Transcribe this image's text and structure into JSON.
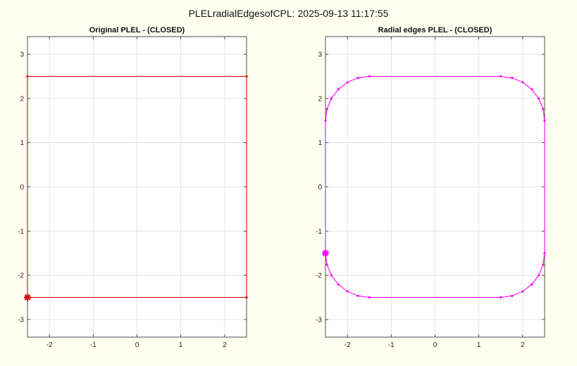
{
  "figure": {
    "title": "PLELradialEdgesofCPL: 2025-09-13 11:17:55",
    "background": "#fffff0"
  },
  "chart_data": [
    {
      "type": "line",
      "title": "Original PLEL - (CLOSED)",
      "xlim": [
        -2.5,
        2.5
      ],
      "ylim": [
        -3.4,
        3.4
      ],
      "xticks": [
        -2,
        -1,
        0,
        1,
        2
      ],
      "yticks": [
        -3,
        -2,
        -1,
        0,
        1,
        2,
        3
      ],
      "grid": true,
      "color": "#e00000",
      "series": [
        {
          "closed": true,
          "points": [
            [
              -2.5,
              -2.5
            ],
            [
              2.5,
              -2.5
            ],
            [
              2.5,
              2.5
            ],
            [
              -2.5,
              2.5
            ],
            [
              -2.5,
              -2.5
            ]
          ],
          "start": [
            -2.5,
            -2.5
          ]
        }
      ]
    },
    {
      "type": "line",
      "title": "Radial edges PLEL - (CLOSED)",
      "xlim": [
        -2.5,
        2.5
      ],
      "ylim": [
        -3.4,
        3.4
      ],
      "xticks": [
        -2,
        -1,
        0,
        1,
        2
      ],
      "yticks": [
        -3,
        -2,
        -1,
        0,
        1,
        2,
        3
      ],
      "grid": true,
      "color": "#ff00ff",
      "series": [
        {
          "closed": true,
          "points": [
            [
              -2.5,
              -1.5
            ],
            [
              -2.5,
              1.5
            ],
            [
              -2.466,
              1.759
            ],
            [
              -2.366,
              2.0
            ],
            [
              -2.207,
              2.207
            ],
            [
              -2.0,
              2.366
            ],
            [
              -1.759,
              2.466
            ],
            [
              -1.5,
              2.5
            ],
            [
              1.5,
              2.5
            ],
            [
              1.759,
              2.466
            ],
            [
              2.0,
              2.366
            ],
            [
              2.207,
              2.207
            ],
            [
              2.366,
              2.0
            ],
            [
              2.466,
              1.759
            ],
            [
              2.5,
              1.5
            ],
            [
              2.5,
              -1.5
            ],
            [
              2.466,
              -1.759
            ],
            [
              2.366,
              -2.0
            ],
            [
              2.207,
              -2.207
            ],
            [
              2.0,
              -2.366
            ],
            [
              1.759,
              -2.466
            ],
            [
              1.5,
              -2.5
            ],
            [
              -1.5,
              -2.5
            ],
            [
              -1.759,
              -2.466
            ],
            [
              -2.0,
              -2.366
            ],
            [
              -2.207,
              -2.207
            ],
            [
              -2.366,
              -2.0
            ],
            [
              -2.466,
              -1.759
            ],
            [
              -2.5,
              -1.5
            ]
          ],
          "start": [
            -2.5,
            -1.5
          ]
        }
      ]
    }
  ]
}
